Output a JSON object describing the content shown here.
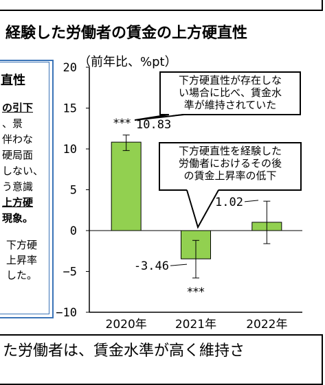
{
  "title": "経験した労働者の賃金の上方硬直性",
  "left_panel": {
    "heading": "直性",
    "lines": [
      {
        "text": "の引下",
        "style": "bu"
      },
      {
        "text": "、景",
        "style": ""
      },
      {
        "text": "伴わな",
        "style": ""
      },
      {
        "text": "硬局面",
        "style": ""
      },
      {
        "text": "しない、",
        "style": ""
      },
      {
        "text": "う意識",
        "style": ""
      },
      {
        "text": "上方硬",
        "style": "bu"
      },
      {
        "text": "現象。",
        "style": "b"
      },
      {
        "text": "下方硬",
        "style": ""
      },
      {
        "text": "上昇率",
        "style": ""
      },
      {
        "text": "した。",
        "style": ""
      }
    ]
  },
  "callouts": {
    "top": "下方硬直性が存在しない場合に比べ、賃金水準が維持されていた",
    "top_lines": [
      "下方硬直性が存在しな",
      "い場合に比べ、賃金水",
      "準が維持されていた"
    ],
    "middle_lines": [
      "下方硬直性を経験した",
      "労働者におけるその後",
      "の賃金上昇率の低下"
    ]
  },
  "bottom": {
    "line1": "た労働者は、賃金水準が高く維持さ"
  },
  "chart_data": {
    "type": "bar",
    "unit_label": "（前年比、%pt）",
    "categories": [
      "2020年",
      "2021年",
      "2022年"
    ],
    "values": [
      10.83,
      -3.46,
      1.02
    ],
    "value_labels": [
      "10.83",
      "-3.46",
      "1.02"
    ],
    "error_low": [
      9.8,
      -5.8,
      -1.6
    ],
    "error_high": [
      11.7,
      -1.2,
      3.6
    ],
    "significance": [
      "***",
      "***",
      ""
    ],
    "ylim": [
      -10,
      20
    ],
    "yticks": [
      20,
      15,
      10,
      5,
      0,
      -5,
      -10
    ],
    "bar_color": "#92d050",
    "grid": false
  }
}
